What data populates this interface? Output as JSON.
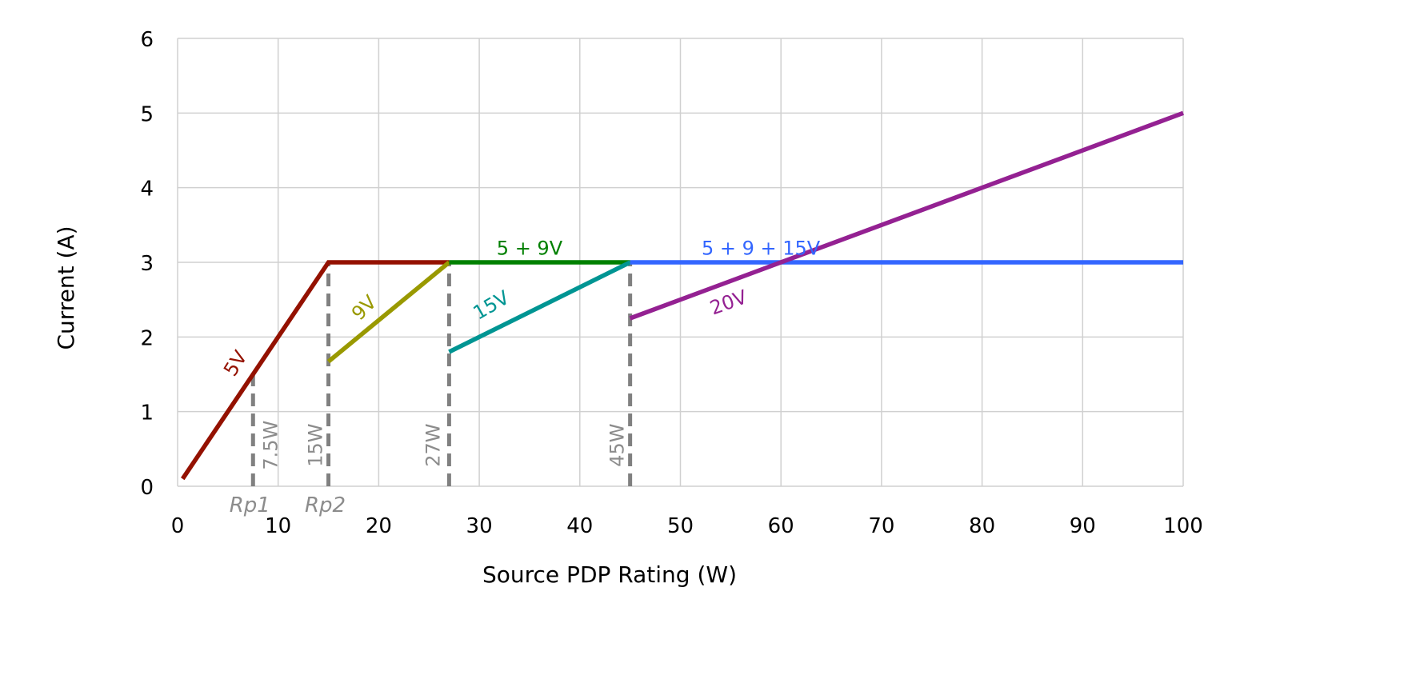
{
  "chart_data": {
    "type": "line",
    "title": "",
    "xlabel": "Source PDP Rating (W)",
    "ylabel": "Current (A)",
    "xlim": [
      0,
      100
    ],
    "ylim": [
      0,
      6
    ],
    "xticks": [
      0,
      10,
      20,
      30,
      40,
      50,
      60,
      70,
      80,
      90,
      100
    ],
    "yticks": [
      0,
      1,
      2,
      3,
      4,
      5,
      6
    ],
    "grid": true,
    "series": [
      {
        "name": "5V",
        "color": "#941100",
        "points": [
          [
            0.5,
            0.1
          ],
          [
            15,
            3
          ],
          [
            27,
            3
          ]
        ]
      },
      {
        "name": "9V",
        "color": "#999900",
        "points": [
          [
            15,
            1.67
          ],
          [
            27,
            3
          ]
        ]
      },
      {
        "name": "5 + 9V",
        "color": "#008000",
        "points": [
          [
            27,
            3
          ],
          [
            45,
            3
          ]
        ]
      },
      {
        "name": "15V",
        "color": "#009593",
        "points": [
          [
            27,
            1.8
          ],
          [
            45,
            3
          ]
        ]
      },
      {
        "name": "5 + 9 + 15V",
        "color": "#3366FF",
        "points": [
          [
            45,
            3
          ],
          [
            100,
            3
          ]
        ]
      },
      {
        "name": "20V",
        "color": "#942192",
        "points": [
          [
            45,
            2.25
          ],
          [
            100,
            5
          ]
        ]
      }
    ],
    "reference_lines": [
      {
        "x": 7.5,
        "y_top": 1.5,
        "label": "7.5W",
        "sublabel": "Rp1"
      },
      {
        "x": 15,
        "y_top": 3,
        "label": "15W",
        "sublabel": "Rp2"
      },
      {
        "x": 27,
        "y_top": 3,
        "label": "27W",
        "sublabel": ""
      },
      {
        "x": 45,
        "y_top": 3,
        "label": "45W",
        "sublabel": ""
      }
    ],
    "reference_color": "#808080"
  }
}
